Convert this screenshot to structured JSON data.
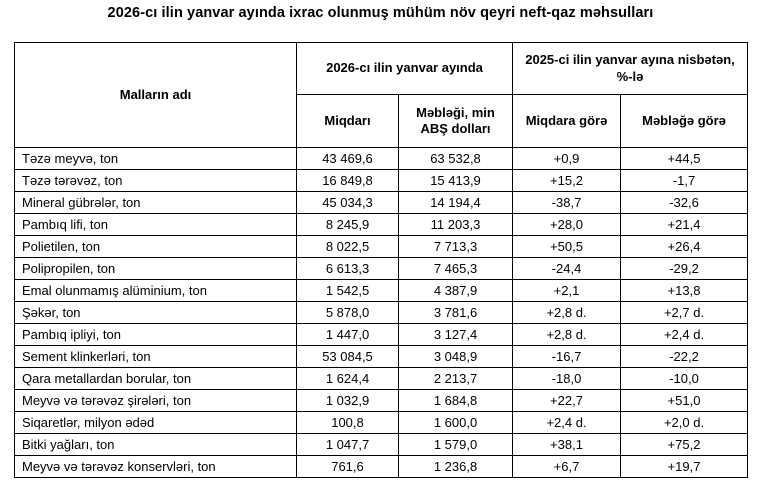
{
  "title": "2026-cı ilin yanvar ayında ixrac olunmuş mühüm növ qeyri neft-qaz məhsulları",
  "table": {
    "col_goods": "Malların adı",
    "group_2026": "2026-cı ilin yanvar ayında",
    "group_2025": "2025-ci ilin yanvar ayına nisbətən, %-lə",
    "col_quantity": "Miqdarı",
    "col_amount": "Məbləği, min ABŞ dolları",
    "col_by_quantity": "Miqdara görə",
    "col_by_amount": "Məbləğə görə",
    "rows": [
      {
        "name": "Təzə meyvə, ton",
        "quantity": "43 469,6",
        "amount": "63 532,8",
        "by_quantity": "+0,9",
        "by_amount": "+44,5"
      },
      {
        "name": "Təzə tərəvəz, ton",
        "quantity": "16 849,8",
        "amount": "15 413,9",
        "by_quantity": "+15,2",
        "by_amount": "-1,7"
      },
      {
        "name": "Mineral gübrələr, ton",
        "quantity": "45 034,3",
        "amount": "14 194,4",
        "by_quantity": "-38,7",
        "by_amount": "-32,6"
      },
      {
        "name": "Pambıq lifi, ton",
        "quantity": "8 245,9",
        "amount": "11 203,3",
        "by_quantity": "+28,0",
        "by_amount": "+21,4"
      },
      {
        "name": "Polietilen, ton",
        "quantity": "8 022,5",
        "amount": "7 713,3",
        "by_quantity": "+50,5",
        "by_amount": "+26,4"
      },
      {
        "name": "Polipropilen, ton",
        "quantity": "6 613,3",
        "amount": "7 465,3",
        "by_quantity": "-24,4",
        "by_amount": "-29,2"
      },
      {
        "name": "Emal olunmamış alüminium, ton",
        "quantity": "1 542,5",
        "amount": "4 387,9",
        "by_quantity": "+2,1",
        "by_amount": "+13,8"
      },
      {
        "name": "Şəkər, ton",
        "quantity": "5 878,0",
        "amount": "3 781,6",
        "by_quantity": "+2,8 d.",
        "by_amount": "+2,7 d."
      },
      {
        "name": "Pambıq ipliyi, ton",
        "quantity": "1 447,0",
        "amount": "3 127,4",
        "by_quantity": "+2,8 d.",
        "by_amount": "+2,4 d."
      },
      {
        "name": "Sement klinkerləri, ton",
        "quantity": "53 084,5",
        "amount": "3 048,9",
        "by_quantity": "-16,7",
        "by_amount": "-22,2"
      },
      {
        "name": "Qara metallardan borular, ton",
        "quantity": "1 624,4",
        "amount": "2 213,7",
        "by_quantity": "-18,0",
        "by_amount": "-10,0"
      },
      {
        "name": "Meyvə və tərəvəz şirələri, ton",
        "quantity": "1 032,9",
        "amount": "1 684,8",
        "by_quantity": "+22,7",
        "by_amount": "+51,0"
      },
      {
        "name": "Siqaretlər, milyon ədəd",
        "quantity": "100,8",
        "amount": "1 600,0",
        "by_quantity": "+2,4 d.",
        "by_amount": "+2,0 d."
      },
      {
        "name": "Bitki yağları, ton",
        "quantity": "1 047,7",
        "amount": "1 579,0",
        "by_quantity": "+38,1",
        "by_amount": "+75,2"
      },
      {
        "name": "Meyvə və tərəvəz konservləri, ton",
        "quantity": "761,6",
        "amount": "1 236,8",
        "by_quantity": "+6,7",
        "by_amount": "+19,7"
      }
    ]
  }
}
